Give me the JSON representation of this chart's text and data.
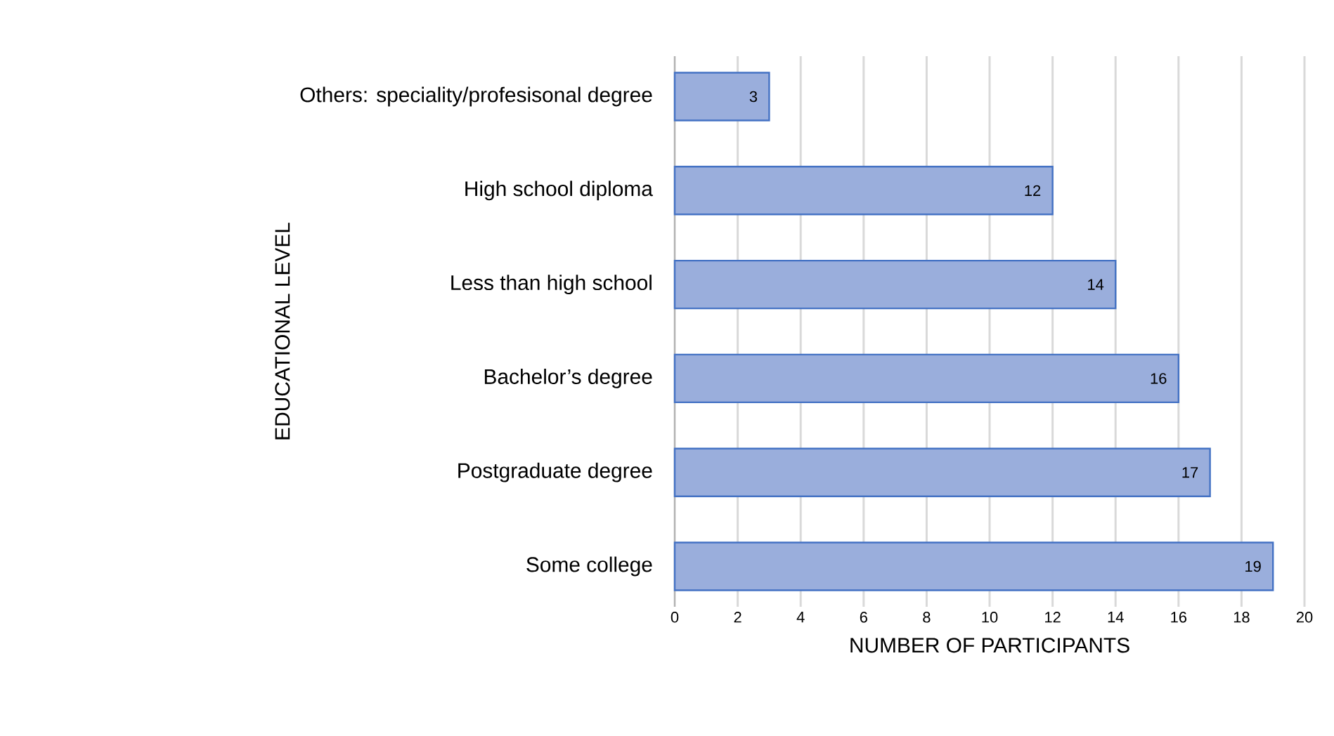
{
  "chart_data": {
    "type": "bar",
    "orientation": "horizontal",
    "xlabel": "NUMBER OF PARTICIPANTS",
    "ylabel": "EDUCATIONAL LEVEL",
    "categories": [
      "Others: speciality/profesisonal degree",
      "High school diploma",
      "Less than high school",
      "Bachelor’s degree",
      "Postgraduate degree",
      "Some college"
    ],
    "values": [
      3,
      12,
      14,
      16,
      17,
      19
    ],
    "color": "#9aaedc",
    "xlim": [
      0,
      20
    ],
    "xticks": [
      0,
      2,
      4,
      6,
      8,
      10,
      12,
      14,
      16,
      18,
      20
    ],
    "grid": "x",
    "data_labels": true
  }
}
